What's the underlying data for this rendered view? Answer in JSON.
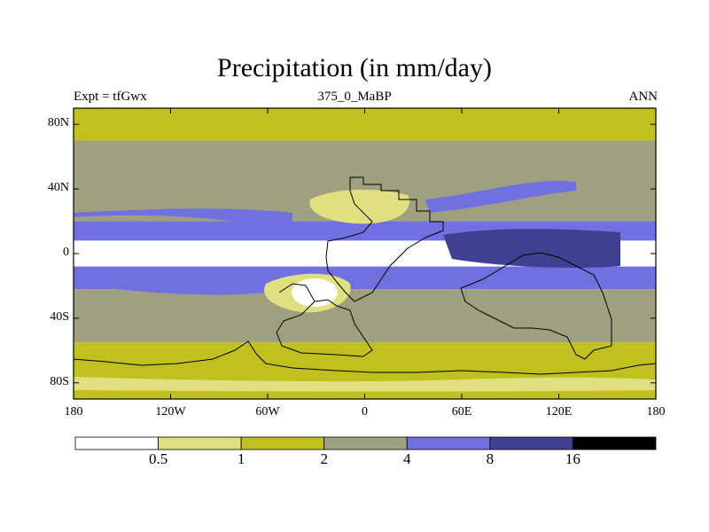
{
  "chart_data": {
    "type": "heatmap",
    "title": "Precipitation (in mm/day)",
    "left_label": "Expt = tfGwx",
    "center_label": "375_0_MaBP",
    "right_label": "ANN",
    "x_range": [
      -180,
      180
    ],
    "y_range": [
      -90,
      90
    ],
    "x_ticks": [
      {
        "value": -180,
        "label": "180"
      },
      {
        "value": -120,
        "label": "120W"
      },
      {
        "value": -60,
        "label": "60W"
      },
      {
        "value": 0,
        "label": "0"
      },
      {
        "value": 60,
        "label": "60E"
      },
      {
        "value": 120,
        "label": "120E"
      },
      {
        "value": 180,
        "label": "180"
      }
    ],
    "y_ticks": [
      {
        "value": 80,
        "label": "80N"
      },
      {
        "value": 40,
        "label": "40N"
      },
      {
        "value": 0,
        "label": "0"
      },
      {
        "value": -40,
        "label": "40S"
      },
      {
        "value": -80,
        "label": "80S"
      }
    ],
    "colorbar": {
      "levels": [
        0.5,
        1,
        2,
        4,
        8,
        16
      ],
      "colors": [
        "#ffffff",
        "#e0e080",
        "#c0c020",
        "#a0a080",
        "#7070e0",
        "#404090",
        "#000000"
      ]
    },
    "zonal_bands": [
      {
        "lat_min": 70,
        "lat_max": 90,
        "class": 2
      },
      {
        "lat_min": 20,
        "lat_max": 70,
        "class": 3
      },
      {
        "lat_min": 8,
        "lat_max": 20,
        "class": 4
      },
      {
        "lat_min": -8,
        "lat_max": 8,
        "class": 0
      },
      {
        "lat_min": -22,
        "lat_max": -8,
        "class": 4
      },
      {
        "lat_min": -55,
        "lat_max": -22,
        "class": 3
      },
      {
        "lat_min": -70,
        "lat_max": -55,
        "class": 2
      },
      {
        "lat_min": -90,
        "lat_max": -70,
        "class": 2
      }
    ]
  }
}
